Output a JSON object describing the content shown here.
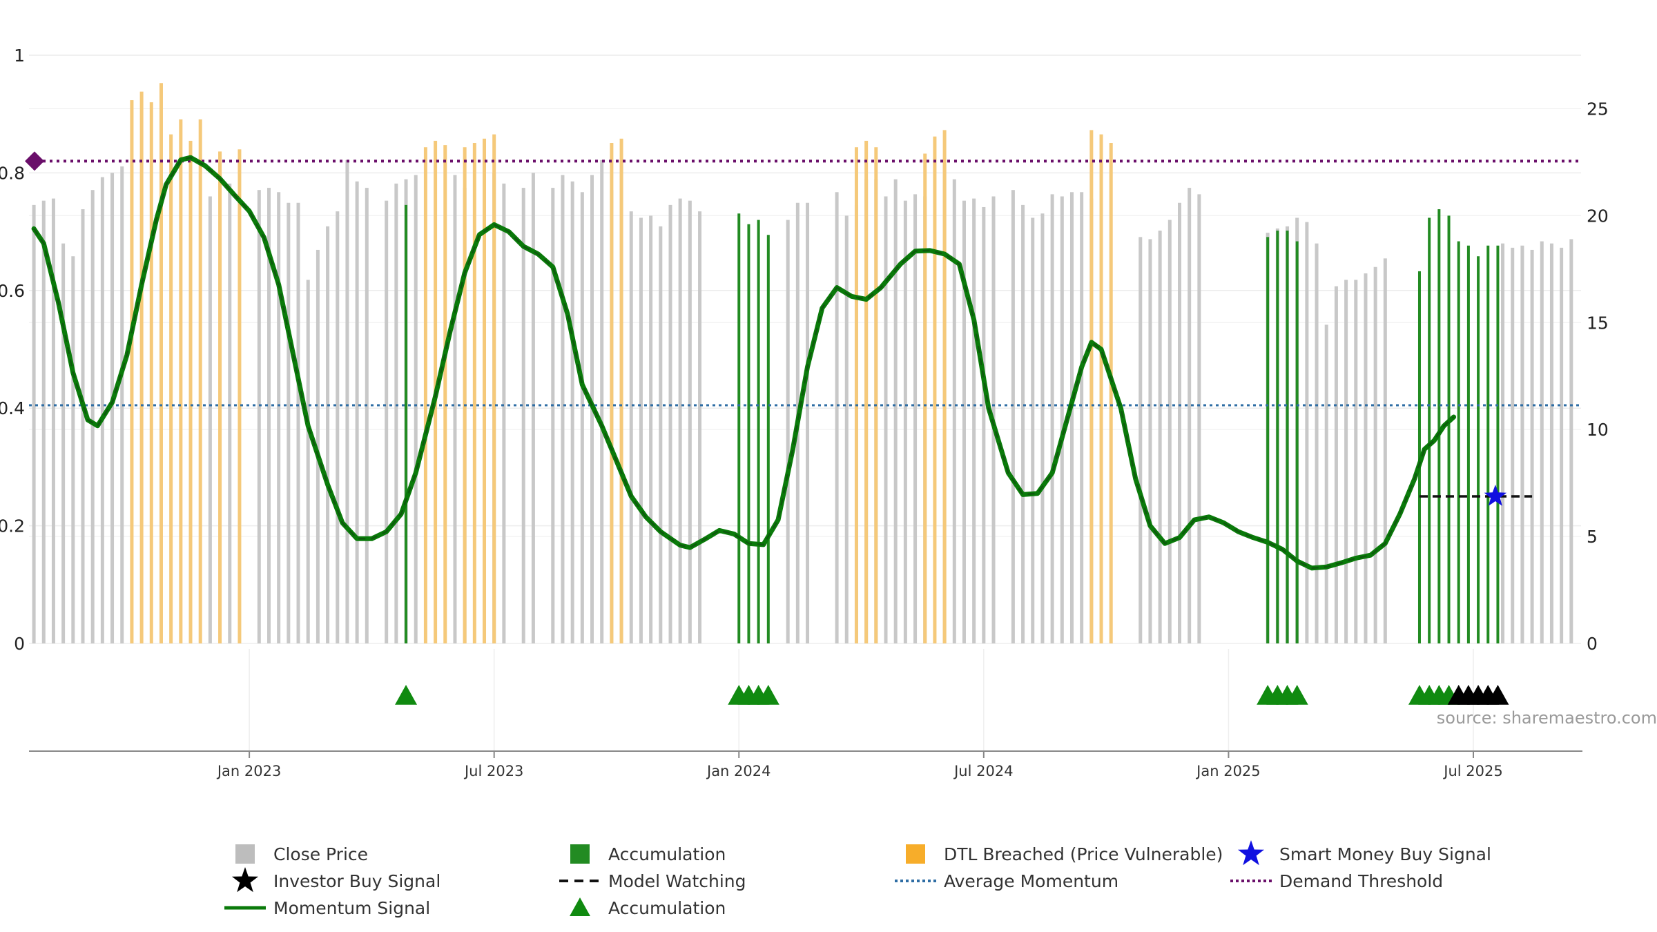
{
  "chart_data": {
    "type": "bar+line",
    "left_axis": {
      "ticks": [
        "0",
        "0.2",
        "0.4",
        "0.6",
        "0.8",
        "1"
      ],
      "ylim": [
        0,
        1
      ]
    },
    "right_axis": {
      "ticks": [
        "0",
        "5",
        "10",
        "15",
        "20",
        "25"
      ],
      "ylim": [
        0,
        27.5
      ]
    },
    "x_ticks": [
      "Jan 2023",
      "Jul 2023",
      "Jan 2024",
      "Jul 2024",
      "Jan 2025",
      "Jul 2025"
    ],
    "x_range": [
      2022.55,
      2025.72
    ],
    "x_tick_positions": [
      2023.0,
      2023.5,
      2024.0,
      2024.5,
      2025.0,
      2025.5
    ],
    "thresholds": {
      "demand_threshold": 0.82,
      "average_momentum": 0.405
    },
    "colors": {
      "price": "#c8c8c8",
      "accumulation": "#228b22",
      "dtl": "#f5c97a",
      "momentum": "#0a7a0a",
      "threshold": "#6a0f6a",
      "average": "#2e6da4",
      "smart_money": "#1010e0"
    },
    "momentum_series": [
      [
        2022.56,
        0.705
      ],
      [
        2022.58,
        0.68
      ],
      [
        2022.61,
        0.58
      ],
      [
        2022.64,
        0.46
      ],
      [
        2022.67,
        0.38
      ],
      [
        2022.69,
        0.37
      ],
      [
        2022.72,
        0.41
      ],
      [
        2022.75,
        0.49
      ],
      [
        2022.78,
        0.61
      ],
      [
        2022.81,
        0.72
      ],
      [
        2022.83,
        0.78
      ],
      [
        2022.86,
        0.822
      ],
      [
        2022.88,
        0.826
      ],
      [
        2022.91,
        0.812
      ],
      [
        2022.94,
        0.79
      ],
      [
        2022.97,
        0.762
      ],
      [
        2023.0,
        0.735
      ],
      [
        2023.03,
        0.69
      ],
      [
        2023.06,
        0.61
      ],
      [
        2023.09,
        0.49
      ],
      [
        2023.12,
        0.37
      ],
      [
        2023.16,
        0.27
      ],
      [
        2023.19,
        0.205
      ],
      [
        2023.22,
        0.178
      ],
      [
        2023.25,
        0.178
      ],
      [
        2023.28,
        0.19
      ],
      [
        2023.31,
        0.22
      ],
      [
        2023.34,
        0.29
      ],
      [
        2023.38,
        0.42
      ],
      [
        2023.41,
        0.53
      ],
      [
        2023.44,
        0.63
      ],
      [
        2023.47,
        0.695
      ],
      [
        2023.5,
        0.712
      ],
      [
        2023.53,
        0.7
      ],
      [
        2023.56,
        0.675
      ],
      [
        2023.59,
        0.662
      ],
      [
        2023.62,
        0.64
      ],
      [
        2023.65,
        0.56
      ],
      [
        2023.68,
        0.44
      ],
      [
        2023.72,
        0.37
      ],
      [
        2023.75,
        0.31
      ],
      [
        2023.78,
        0.25
      ],
      [
        2023.81,
        0.215
      ],
      [
        2023.84,
        0.19
      ],
      [
        2023.88,
        0.167
      ],
      [
        2023.9,
        0.163
      ],
      [
        2023.93,
        0.177
      ],
      [
        2023.96,
        0.192
      ],
      [
        2023.99,
        0.186
      ],
      [
        2024.02,
        0.17
      ],
      [
        2024.05,
        0.168
      ],
      [
        2024.08,
        0.21
      ],
      [
        2024.11,
        0.33
      ],
      [
        2024.14,
        0.47
      ],
      [
        2024.17,
        0.57
      ],
      [
        2024.2,
        0.605
      ],
      [
        2024.23,
        0.59
      ],
      [
        2024.26,
        0.585
      ],
      [
        2024.29,
        0.605
      ],
      [
        2024.33,
        0.645
      ],
      [
        2024.36,
        0.667
      ],
      [
        2024.39,
        0.668
      ],
      [
        2024.42,
        0.662
      ],
      [
        2024.45,
        0.645
      ],
      [
        2024.48,
        0.55
      ],
      [
        2024.51,
        0.4
      ],
      [
        2024.55,
        0.29
      ],
      [
        2024.58,
        0.253
      ],
      [
        2024.61,
        0.255
      ],
      [
        2024.64,
        0.29
      ],
      [
        2024.67,
        0.38
      ],
      [
        2024.7,
        0.47
      ],
      [
        2024.72,
        0.512
      ],
      [
        2024.74,
        0.5
      ],
      [
        2024.78,
        0.4
      ],
      [
        2024.81,
        0.28
      ],
      [
        2024.84,
        0.2
      ],
      [
        2024.87,
        0.17
      ],
      [
        2024.9,
        0.18
      ],
      [
        2024.93,
        0.21
      ],
      [
        2024.96,
        0.215
      ],
      [
        2024.99,
        0.205
      ],
      [
        2025.02,
        0.19
      ],
      [
        2025.05,
        0.18
      ],
      [
        2025.08,
        0.172
      ],
      [
        2025.11,
        0.16
      ],
      [
        2025.14,
        0.14
      ],
      [
        2025.17,
        0.128
      ],
      [
        2025.2,
        0.13
      ],
      [
        2025.23,
        0.137
      ],
      [
        2025.26,
        0.145
      ],
      [
        2025.29,
        0.15
      ],
      [
        2025.32,
        0.17
      ],
      [
        2025.35,
        0.22
      ],
      [
        2025.38,
        0.28
      ],
      [
        2025.4,
        0.33
      ],
      [
        2025.42,
        0.345
      ],
      [
        2025.44,
        0.37
      ],
      [
        2025.46,
        0.385
      ]
    ],
    "price_bars": [
      [
        2022.56,
        20.5
      ],
      [
        2022.58,
        20.7
      ],
      [
        2022.6,
        20.8
      ],
      [
        2022.62,
        18.7
      ],
      [
        2022.64,
        18.1
      ],
      [
        2022.66,
        20.3
      ],
      [
        2022.68,
        21.2
      ],
      [
        2022.7,
        21.8
      ],
      [
        2022.72,
        22.0
      ],
      [
        2022.74,
        22.3
      ],
      [
        2022.92,
        20.9
      ],
      [
        2022.96,
        21.5
      ],
      [
        2023.02,
        21.2
      ],
      [
        2023.04,
        21.3
      ],
      [
        2023.06,
        21.1
      ],
      [
        2023.08,
        20.6
      ],
      [
        2023.1,
        20.6
      ],
      [
        2023.12,
        17.0
      ],
      [
        2023.14,
        18.4
      ],
      [
        2023.16,
        19.5
      ],
      [
        2023.18,
        20.2
      ],
      [
        2023.2,
        22.6
      ],
      [
        2023.22,
        21.6
      ],
      [
        2023.24,
        21.3
      ],
      [
        2023.28,
        20.7
      ],
      [
        2023.3,
        21.5
      ],
      [
        2023.32,
        21.7
      ],
      [
        2023.34,
        21.9
      ],
      [
        2023.42,
        21.9
      ],
      [
        2023.44,
        21.3
      ],
      [
        2023.5,
        22.0
      ],
      [
        2023.52,
        21.5
      ],
      [
        2023.56,
        21.3
      ],
      [
        2023.58,
        22.0
      ],
      [
        2023.62,
        21.3
      ],
      [
        2023.64,
        21.9
      ],
      [
        2023.66,
        21.6
      ],
      [
        2023.68,
        21.1
      ],
      [
        2023.7,
        21.9
      ],
      [
        2023.72,
        22.6
      ],
      [
        2023.74,
        21.2
      ],
      [
        2023.76,
        22.6
      ],
      [
        2023.78,
        20.2
      ],
      [
        2023.8,
        19.9
      ],
      [
        2023.82,
        20.0
      ],
      [
        2023.84,
        19.5
      ],
      [
        2023.86,
        20.5
      ],
      [
        2023.88,
        20.8
      ],
      [
        2023.9,
        20.7
      ],
      [
        2023.92,
        20.2
      ],
      [
        2024.1,
        19.8
      ],
      [
        2024.12,
        20.6
      ],
      [
        2024.14,
        20.6
      ],
      [
        2024.2,
        21.1
      ],
      [
        2024.22,
        20.0
      ],
      [
        2024.24,
        20.5
      ],
      [
        2024.26,
        21.7
      ],
      [
        2024.28,
        21.7
      ],
      [
        2024.3,
        20.9
      ],
      [
        2024.32,
        21.7
      ],
      [
        2024.34,
        20.7
      ],
      [
        2024.36,
        21.0
      ],
      [
        2024.38,
        20.9
      ],
      [
        2024.42,
        22.4
      ],
      [
        2024.44,
        21.7
      ],
      [
        2024.46,
        20.7
      ],
      [
        2024.48,
        20.8
      ],
      [
        2024.5,
        20.4
      ],
      [
        2024.52,
        20.9
      ],
      [
        2024.56,
        21.2
      ],
      [
        2024.58,
        20.5
      ],
      [
        2024.6,
        19.9
      ],
      [
        2024.62,
        20.1
      ],
      [
        2024.64,
        21.0
      ],
      [
        2024.66,
        20.9
      ],
      [
        2024.68,
        21.1
      ],
      [
        2024.7,
        21.1
      ],
      [
        2024.72,
        20.8
      ],
      [
        2024.82,
        19.0
      ],
      [
        2024.84,
        18.9
      ],
      [
        2024.86,
        19.3
      ],
      [
        2024.88,
        19.8
      ],
      [
        2024.9,
        20.6
      ],
      [
        2024.92,
        21.3
      ],
      [
        2024.94,
        21.0
      ],
      [
        2025.08,
        19.2
      ],
      [
        2025.1,
        19.4
      ],
      [
        2025.12,
        19.5
      ],
      [
        2025.14,
        19.9
      ],
      [
        2025.16,
        19.7
      ],
      [
        2025.18,
        18.7
      ],
      [
        2025.2,
        14.9
      ],
      [
        2025.22,
        16.7
      ],
      [
        2025.24,
        17.0
      ],
      [
        2025.26,
        17.0
      ],
      [
        2025.28,
        17.3
      ],
      [
        2025.3,
        17.6
      ],
      [
        2025.32,
        18.0
      ],
      [
        2025.56,
        18.7
      ],
      [
        2025.58,
        18.5
      ],
      [
        2025.6,
        18.6
      ],
      [
        2025.62,
        18.4
      ],
      [
        2025.64,
        18.8
      ],
      [
        2025.66,
        18.7
      ],
      [
        2025.68,
        18.5
      ],
      [
        2025.7,
        18.9
      ]
    ],
    "dtl_bars": [
      [
        2022.76,
        25.4
      ],
      [
        2022.78,
        25.8
      ],
      [
        2022.8,
        25.3
      ],
      [
        2022.82,
        26.2
      ],
      [
        2022.84,
        23.8
      ],
      [
        2022.86,
        24.5
      ],
      [
        2022.88,
        23.5
      ],
      [
        2022.9,
        24.5
      ],
      [
        2022.94,
        23.0
      ],
      [
        2022.98,
        23.1
      ],
      [
        2023.36,
        23.2
      ],
      [
        2023.38,
        23.5
      ],
      [
        2023.4,
        23.3
      ],
      [
        2023.44,
        23.2
      ],
      [
        2023.46,
        23.4
      ],
      [
        2023.48,
        23.6
      ],
      [
        2023.5,
        23.8
      ],
      [
        2023.74,
        23.4
      ],
      [
        2023.76,
        23.6
      ],
      [
        2024.24,
        23.2
      ],
      [
        2024.26,
        23.5
      ],
      [
        2024.28,
        23.2
      ],
      [
        2024.38,
        22.9
      ],
      [
        2024.4,
        23.7
      ],
      [
        2024.42,
        24.0
      ],
      [
        2024.72,
        24.0
      ],
      [
        2024.74,
        23.8
      ],
      [
        2024.76,
        23.4
      ]
    ],
    "accumulation_bars": [
      [
        2023.32,
        20.5
      ],
      [
        2024.0,
        20.1
      ],
      [
        2024.02,
        19.6
      ],
      [
        2024.04,
        19.8
      ],
      [
        2024.06,
        19.1
      ],
      [
        2025.08,
        19.0
      ],
      [
        2025.1,
        19.3
      ],
      [
        2025.12,
        19.3
      ],
      [
        2025.14,
        18.8
      ],
      [
        2025.39,
        17.4
      ],
      [
        2025.41,
        19.9
      ],
      [
        2025.43,
        20.3
      ],
      [
        2025.45,
        20.0
      ],
      [
        2025.47,
        18.8
      ],
      [
        2025.49,
        18.6
      ],
      [
        2025.51,
        18.1
      ],
      [
        2025.53,
        18.6
      ],
      [
        2025.55,
        18.6
      ]
    ],
    "accumulation_markers": [
      2023.32,
      2024.0,
      2024.02,
      2024.04,
      2024.06,
      2025.08,
      2025.1,
      2025.12,
      2025.14,
      2025.39,
      2025.41,
      2025.43,
      2025.45
    ],
    "investor_buy_markers": [
      2025.47,
      2025.49,
      2025.51,
      2025.53,
      2025.55
    ],
    "model_watching": {
      "x_start": 2025.39,
      "x_end": 2025.62,
      "y": 0.25
    },
    "smart_money_buy": {
      "x": 2025.545,
      "y": 0.25
    },
    "watermark": "source: sharemaestro.com",
    "legend": [
      {
        "label": "Close Price",
        "symbol": "gray-square-icon"
      },
      {
        "label": "Accumulation",
        "symbol": "green-square-icon"
      },
      {
        "label": "DTL Breached (Price Vulnerable)",
        "symbol": "orange-square-icon"
      },
      {
        "label": "Smart Money Buy Signal",
        "symbol": "blue-star-icon"
      },
      {
        "label": "Investor Buy Signal",
        "symbol": "black-star-icon"
      },
      {
        "label": "Model Watching",
        "symbol": "dashed-line-icon"
      },
      {
        "label": "Average Momentum",
        "symbol": "dotted-blue-line-icon"
      },
      {
        "label": "Demand Threshold",
        "symbol": "dotted-purple-line-icon"
      },
      {
        "label": "Momentum Signal",
        "symbol": "green-line-icon"
      },
      {
        "label": "Accumulation",
        "symbol": "green-triangle-icon"
      }
    ]
  }
}
